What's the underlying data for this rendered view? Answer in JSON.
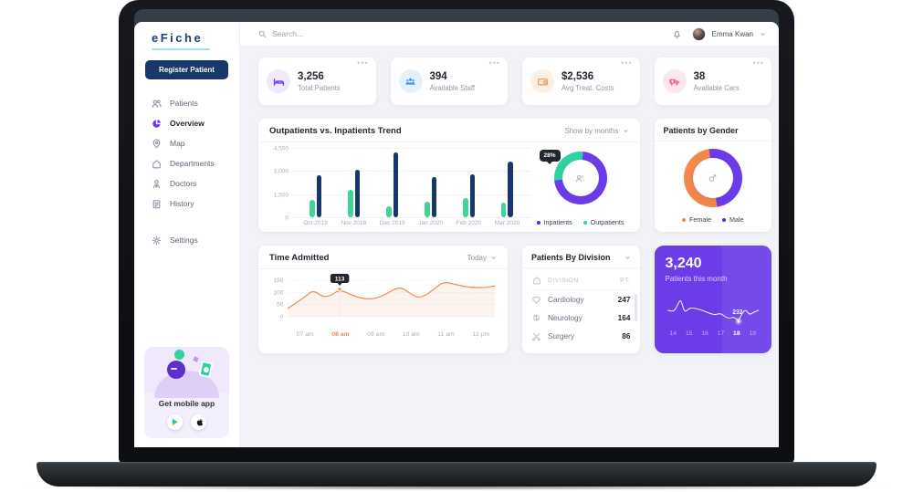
{
  "header": {
    "search_placeholder": "Search...",
    "user_name": "Emma Kwan"
  },
  "brand": {
    "logo": "eFiche"
  },
  "sidebar": {
    "register_button": "Register Patient",
    "items": [
      {
        "key": "patients",
        "label": "Patients",
        "icon": "patients",
        "active": false
      },
      {
        "key": "overview",
        "label": "Overview",
        "icon": "overview",
        "active": true
      },
      {
        "key": "map",
        "label": "Map",
        "icon": "map",
        "active": false
      },
      {
        "key": "departments",
        "label": "Departments",
        "icon": "departments",
        "active": false
      },
      {
        "key": "doctors",
        "label": "Doctors",
        "icon": "doctors",
        "active": false
      },
      {
        "key": "history",
        "label": "History",
        "icon": "history",
        "active": false
      }
    ],
    "settings_item": {
      "key": "settings",
      "label": "Settings",
      "icon": "settings"
    },
    "mobile_app": {
      "title": "Get mobile app",
      "stores": [
        "google-play",
        "apple"
      ]
    }
  },
  "stats": [
    {
      "value": "3,256",
      "label": "Total Patients",
      "icon": "bed",
      "accent": "#7C3AED",
      "bg": "#F0E9FD"
    },
    {
      "value": "394",
      "label": "Available Staff",
      "icon": "staff",
      "accent": "#4A9CF5",
      "bg": "#E4F1FD"
    },
    {
      "value": "$2,536",
      "label": "Avg Treat. Costs",
      "icon": "wallet",
      "accent": "#F59B57",
      "bg": "#FDEFE3"
    },
    {
      "value": "38",
      "label": "Available Cars",
      "icon": "ambulance",
      "accent": "#F45E8C",
      "bg": "#FDE7EF"
    }
  ],
  "trend_card": {
    "title": "Outpatients vs. Inpatients Trend",
    "filter_label": "Show by months",
    "legend": [
      {
        "label": "Inpatients",
        "color": "#5B2BD9"
      },
      {
        "label": "Outpatients",
        "color": "#2FD2A2"
      }
    ],
    "chart_data": {
      "type": "bar",
      "categories": [
        "Oct 2019",
        "Nov 2019",
        "Dec 2019",
        "Jan 2020",
        "Feb 2020",
        "Mar 2020"
      ],
      "series": [
        {
          "name": "Outpatients",
          "color": "#3ED598",
          "values": [
            1100,
            1800,
            700,
            1000,
            1250,
            950
          ]
        },
        {
          "name": "Inpatients",
          "color": "#17386F",
          "values": [
            2700,
            3100,
            4200,
            2600,
            2800,
            3600
          ]
        }
      ],
      "ylim": [
        0,
        4500
      ],
      "yticks": [
        "4,500",
        "3,000",
        "1,500",
        "0"
      ]
    },
    "donut": {
      "type": "pie",
      "badge": "28%",
      "slices": [
        {
          "label": "Outpatients",
          "value": 28,
          "color": "#2FD2A2"
        },
        {
          "label": "Inpatients",
          "value": 72,
          "color": "#6C3CE9"
        }
      ]
    }
  },
  "gender_card": {
    "title": "Patients by Gender",
    "legend": [
      {
        "label": "Female",
        "color": "#F4874B"
      },
      {
        "label": "Male",
        "color": "#5B2BD9"
      }
    ],
    "chart_data": {
      "type": "pie",
      "slices": [
        {
          "label": "Female",
          "value": 50,
          "color": "#F4874B"
        },
        {
          "label": "Male",
          "value": 50,
          "color": "#6C3CE9"
        }
      ]
    }
  },
  "time_card": {
    "title": "Time Admitted",
    "filter_label": "Today",
    "tooltip": "113",
    "chart_data": {
      "type": "line",
      "color": "#F0885A",
      "x_labels": [
        "07 am",
        "08 am",
        "09 am",
        "10 am",
        "11 am",
        "12 pm"
      ],
      "active_x_label": "08 am",
      "ylim": [
        0,
        150
      ],
      "yticks": [
        "150",
        "100",
        "50",
        "0"
      ],
      "points": [
        [
          0,
          35
        ],
        [
          8,
          80
        ],
        [
          12,
          110
        ],
        [
          17,
          80
        ],
        [
          21,
          88
        ],
        [
          25,
          113
        ],
        [
          33,
          80
        ],
        [
          41,
          70
        ],
        [
          48,
          95
        ],
        [
          54,
          126
        ],
        [
          60,
          90
        ],
        [
          64,
          76
        ],
        [
          70,
          108
        ],
        [
          75,
          145
        ],
        [
          81,
          132
        ],
        [
          88,
          120
        ],
        [
          95,
          119
        ],
        [
          100,
          126
        ]
      ],
      "marker": {
        "x": 25,
        "value": 113
      }
    }
  },
  "division_card": {
    "title": "Patients By Division",
    "columns": [
      "DIVISION",
      "PT."
    ],
    "rows": [
      {
        "icon": "cardiology",
        "division": "Cardiology",
        "pt": "247"
      },
      {
        "icon": "neurology",
        "division": "Neurology",
        "pt": "164"
      },
      {
        "icon": "surgery",
        "division": "Surgery",
        "pt": "86"
      }
    ]
  },
  "month_card": {
    "value": "3,240",
    "label": "Patients this month",
    "point_label": "232",
    "x_ticks": [
      "14",
      "15",
      "16",
      "17",
      "18",
      "19"
    ],
    "active_tick": "18",
    "chart_data": {
      "type": "line",
      "color": "#FFFFFF",
      "points": [
        [
          0,
          21
        ],
        [
          6,
          23
        ],
        [
          10,
          16
        ],
        [
          14,
          8
        ],
        [
          18,
          24
        ],
        [
          24,
          18
        ],
        [
          31,
          19
        ],
        [
          38,
          21
        ],
        [
          45,
          24
        ],
        [
          52,
          26
        ],
        [
          58,
          24
        ],
        [
          63,
          28
        ],
        [
          68,
          30
        ],
        [
          73,
          28
        ],
        [
          78,
          33
        ],
        [
          82,
          24
        ],
        [
          86,
          20
        ],
        [
          90,
          26
        ],
        [
          95,
          23
        ],
        [
          100,
          21
        ]
      ],
      "marker": {
        "x": 78,
        "y": 33
      }
    }
  }
}
